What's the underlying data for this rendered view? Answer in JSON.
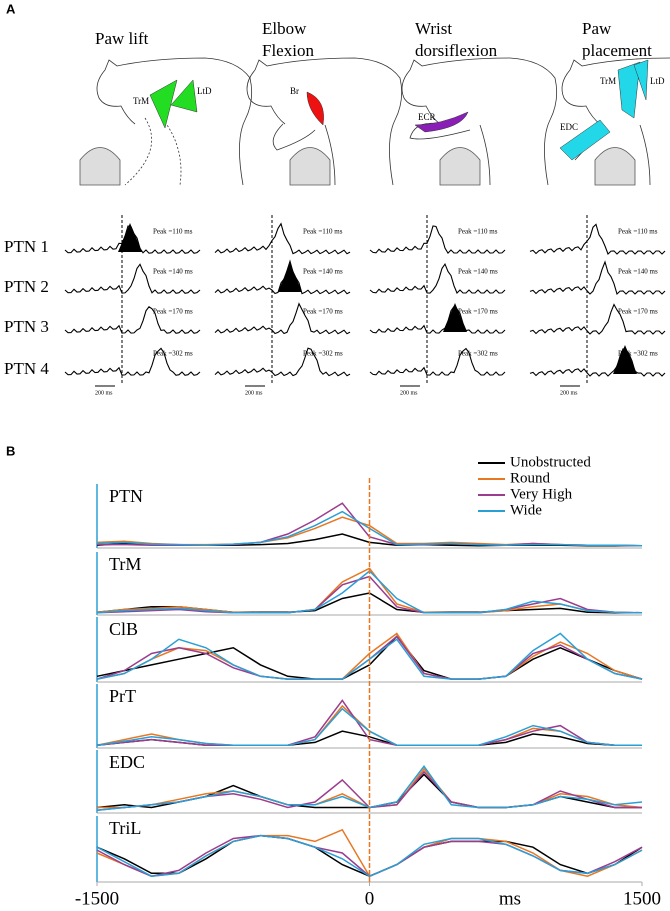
{
  "panel_a": {
    "label": "A",
    "columns": [
      {
        "title": [
          "Paw lift"
        ],
        "muscles": [
          "TrM",
          "LtD"
        ]
      },
      {
        "title": [
          "Elbow",
          "Flexion"
        ],
        "muscles": [
          "Br"
        ]
      },
      {
        "title": [
          "Wrist",
          "dorsiflexion"
        ],
        "muscles": [
          "ECR"
        ]
      },
      {
        "title": [
          "Paw",
          "placement"
        ],
        "muscles": [
          "TrM",
          "LtD",
          "EDC"
        ]
      }
    ],
    "rows": [
      "PTN 1",
      "PTN 2",
      "PTN 3",
      "PTN 4"
    ],
    "peaks": [
      "Peak =110 ms",
      "Peak =140 ms",
      "Peak =170 ms",
      "Peak =302 ms"
    ],
    "scale_bar": "200 ms"
  },
  "panel_b": {
    "label": "B"
  },
  "chart_data": [
    {
      "type": "line",
      "title": "PTN",
      "xlim": [
        -1500,
        1500
      ],
      "ylim": [
        0,
        1
      ],
      "x": [
        -1500,
        -1350,
        -1200,
        -1050,
        -900,
        -750,
        -600,
        -450,
        -300,
        -150,
        0,
        150,
        300,
        450,
        600,
        750,
        900,
        1050,
        1200,
        1350,
        1500
      ],
      "series": [
        {
          "name": "Unobstructed",
          "color": "#000000",
          "values": [
            0.05,
            0.08,
            0.06,
            0.05,
            0.05,
            0.05,
            0.06,
            0.08,
            0.15,
            0.25,
            0.1,
            0.05,
            0.06,
            0.05,
            0.04,
            0.05,
            0.05,
            0.05,
            0.04,
            0.04,
            0.04
          ]
        },
        {
          "name": "Round",
          "color": "#e87722",
          "values": [
            0.1,
            0.12,
            0.08,
            0.06,
            0.06,
            0.07,
            0.1,
            0.18,
            0.35,
            0.55,
            0.4,
            0.08,
            0.08,
            0.1,
            0.08,
            0.06,
            0.08,
            0.06,
            0.05,
            0.05,
            0.04
          ]
        },
        {
          "name": "Very High",
          "color": "#9b3d8f",
          "values": [
            0.06,
            0.06,
            0.05,
            0.05,
            0.05,
            0.06,
            0.1,
            0.25,
            0.5,
            0.8,
            0.2,
            0.06,
            0.06,
            0.08,
            0.06,
            0.05,
            0.08,
            0.06,
            0.05,
            0.05,
            0.04
          ]
        },
        {
          "name": "Wide",
          "color": "#2a9fd6",
          "values": [
            0.08,
            0.1,
            0.07,
            0.06,
            0.05,
            0.07,
            0.1,
            0.2,
            0.4,
            0.65,
            0.35,
            0.06,
            0.07,
            0.08,
            0.06,
            0.05,
            0.06,
            0.06,
            0.05,
            0.05,
            0.04
          ]
        }
      ]
    },
    {
      "type": "line",
      "title": "TrM",
      "xlim": [
        -1500,
        1500
      ],
      "ylim": [
        0,
        1
      ],
      "x": [
        -1500,
        -1350,
        -1200,
        -1050,
        -900,
        -750,
        -600,
        -450,
        -300,
        -150,
        0,
        150,
        300,
        450,
        600,
        750,
        900,
        1050,
        1200,
        1350,
        1500
      ],
      "series": [
        {
          "name": "Unobstructed",
          "color": "#000000",
          "values": [
            0.05,
            0.1,
            0.15,
            0.15,
            0.1,
            0.05,
            0.05,
            0.05,
            0.08,
            0.3,
            0.4,
            0.1,
            0.05,
            0.05,
            0.05,
            0.08,
            0.1,
            0.12,
            0.05,
            0.04,
            0.04
          ]
        },
        {
          "name": "Round",
          "color": "#e87722",
          "values": [
            0.05,
            0.1,
            0.12,
            0.15,
            0.1,
            0.05,
            0.04,
            0.04,
            0.1,
            0.6,
            0.85,
            0.2,
            0.05,
            0.04,
            0.04,
            0.08,
            0.15,
            0.2,
            0.08,
            0.05,
            0.04
          ]
        },
        {
          "name": "Very High",
          "color": "#9b3d8f",
          "values": [
            0.04,
            0.06,
            0.08,
            0.1,
            0.06,
            0.04,
            0.04,
            0.04,
            0.1,
            0.55,
            0.7,
            0.15,
            0.04,
            0.04,
            0.04,
            0.1,
            0.2,
            0.3,
            0.1,
            0.05,
            0.04
          ]
        },
        {
          "name": "Wide",
          "color": "#2a9fd6",
          "values": [
            0.04,
            0.08,
            0.1,
            0.12,
            0.08,
            0.04,
            0.04,
            0.04,
            0.1,
            0.4,
            0.8,
            0.3,
            0.04,
            0.04,
            0.04,
            0.1,
            0.25,
            0.2,
            0.08,
            0.05,
            0.04
          ]
        }
      ]
    },
    {
      "type": "line",
      "title": "ClB",
      "xlim": [
        -1500,
        1500
      ],
      "ylim": [
        0,
        1
      ],
      "x": [
        -1500,
        -1350,
        -1200,
        -1050,
        -900,
        -750,
        -600,
        -450,
        -300,
        -150,
        0,
        150,
        300,
        450,
        600,
        750,
        900,
        1050,
        1200,
        1350,
        1500
      ],
      "series": [
        {
          "name": "Unobstructed",
          "color": "#000000",
          "values": [
            0.1,
            0.2,
            0.3,
            0.4,
            0.5,
            0.6,
            0.3,
            0.1,
            0.05,
            0.05,
            0.3,
            0.8,
            0.2,
            0.05,
            0.05,
            0.1,
            0.4,
            0.6,
            0.4,
            0.2,
            0.05
          ]
        },
        {
          "name": "Round",
          "color": "#e87722",
          "values": [
            0.05,
            0.15,
            0.4,
            0.6,
            0.55,
            0.3,
            0.1,
            0.05,
            0.05,
            0.05,
            0.5,
            0.85,
            0.15,
            0.05,
            0.05,
            0.1,
            0.45,
            0.7,
            0.5,
            0.2,
            0.05
          ]
        },
        {
          "name": "Very High",
          "color": "#9b3d8f",
          "values": [
            0.05,
            0.2,
            0.5,
            0.6,
            0.5,
            0.25,
            0.1,
            0.05,
            0.05,
            0.05,
            0.4,
            0.8,
            0.15,
            0.05,
            0.05,
            0.1,
            0.5,
            0.65,
            0.4,
            0.15,
            0.05
          ]
        },
        {
          "name": "Wide",
          "color": "#2a9fd6",
          "values": [
            0.05,
            0.15,
            0.4,
            0.75,
            0.6,
            0.3,
            0.1,
            0.05,
            0.05,
            0.05,
            0.4,
            0.75,
            0.1,
            0.05,
            0.05,
            0.1,
            0.55,
            0.85,
            0.4,
            0.15,
            0.05
          ]
        }
      ]
    },
    {
      "type": "line",
      "title": "PrT",
      "xlim": [
        -1500,
        1500
      ],
      "ylim": [
        0,
        1
      ],
      "x": [
        -1500,
        -1350,
        -1200,
        -1050,
        -900,
        -750,
        -600,
        -450,
        -300,
        -150,
        0,
        150,
        300,
        450,
        600,
        750,
        900,
        1050,
        1200,
        1350,
        1500
      ],
      "series": [
        {
          "name": "Unobstructed",
          "color": "#000000",
          "values": [
            0.05,
            0.1,
            0.15,
            0.1,
            0.05,
            0.05,
            0.05,
            0.05,
            0.1,
            0.3,
            0.2,
            0.05,
            0.05,
            0.05,
            0.05,
            0.1,
            0.25,
            0.2,
            0.08,
            0.05,
            0.05
          ]
        },
        {
          "name": "Round",
          "color": "#e87722",
          "values": [
            0.05,
            0.15,
            0.25,
            0.15,
            0.08,
            0.05,
            0.05,
            0.05,
            0.15,
            0.75,
            0.3,
            0.05,
            0.05,
            0.05,
            0.05,
            0.15,
            0.35,
            0.3,
            0.1,
            0.05,
            0.05
          ]
        },
        {
          "name": "Very High",
          "color": "#9b3d8f",
          "values": [
            0.05,
            0.1,
            0.15,
            0.1,
            0.05,
            0.05,
            0.05,
            0.05,
            0.2,
            0.85,
            0.15,
            0.05,
            0.05,
            0.05,
            0.05,
            0.15,
            0.3,
            0.4,
            0.1,
            0.05,
            0.05
          ]
        },
        {
          "name": "Wide",
          "color": "#2a9fd6",
          "values": [
            0.05,
            0.12,
            0.2,
            0.15,
            0.08,
            0.05,
            0.05,
            0.05,
            0.15,
            0.7,
            0.3,
            0.05,
            0.05,
            0.05,
            0.05,
            0.2,
            0.4,
            0.3,
            0.1,
            0.05,
            0.05
          ]
        }
      ]
    },
    {
      "type": "line",
      "title": "EDC",
      "xlim": [
        -1500,
        1500
      ],
      "ylim": [
        0,
        1
      ],
      "x": [
        -1500,
        -1350,
        -1200,
        -1050,
        -900,
        -750,
        -600,
        -450,
        -300,
        -150,
        0,
        150,
        300,
        450,
        600,
        750,
        900,
        1050,
        1200,
        1350,
        1500
      ],
      "series": [
        {
          "name": "Unobstructed",
          "color": "#000000",
          "values": [
            0.1,
            0.15,
            0.1,
            0.2,
            0.3,
            0.5,
            0.3,
            0.15,
            0.1,
            0.1,
            0.1,
            0.2,
            0.7,
            0.2,
            0.1,
            0.1,
            0.15,
            0.3,
            0.2,
            0.1,
            0.1
          ]
        },
        {
          "name": "Round",
          "color": "#e87722",
          "values": [
            0.1,
            0.1,
            0.15,
            0.25,
            0.35,
            0.4,
            0.3,
            0.15,
            0.15,
            0.35,
            0.1,
            0.15,
            0.8,
            0.2,
            0.1,
            0.1,
            0.15,
            0.35,
            0.3,
            0.15,
            0.1
          ]
        },
        {
          "name": "Very High",
          "color": "#9b3d8f",
          "values": [
            0.05,
            0.1,
            0.15,
            0.2,
            0.3,
            0.35,
            0.25,
            0.1,
            0.2,
            0.6,
            0.1,
            0.15,
            0.75,
            0.2,
            0.1,
            0.1,
            0.15,
            0.4,
            0.25,
            0.1,
            0.1
          ]
        },
        {
          "name": "Wide",
          "color": "#2a9fd6",
          "values": [
            0.05,
            0.1,
            0.15,
            0.2,
            0.3,
            0.4,
            0.3,
            0.15,
            0.15,
            0.3,
            0.1,
            0.2,
            0.85,
            0.15,
            0.1,
            0.1,
            0.15,
            0.3,
            0.25,
            0.15,
            0.2
          ]
        }
      ]
    },
    {
      "type": "line",
      "title": "TriL",
      "xlim": [
        -1500,
        1500
      ],
      "ylim": [
        0,
        1
      ],
      "x": [
        -1500,
        -1350,
        -1200,
        -1050,
        -900,
        -750,
        -600,
        -450,
        -300,
        -150,
        0,
        150,
        300,
        450,
        600,
        750,
        900,
        1050,
        1200,
        1350,
        1500
      ],
      "xticks": [
        -1500,
        0,
        1500
      ],
      "xlabel": "ms",
      "series": [
        {
          "name": "Unobstructed",
          "color": "#000000",
          "values": [
            0.6,
            0.4,
            0.15,
            0.15,
            0.4,
            0.7,
            0.8,
            0.75,
            0.6,
            0.3,
            0.1,
            0.3,
            0.6,
            0.7,
            0.7,
            0.7,
            0.6,
            0.3,
            0.15,
            0.3,
            0.6
          ]
        },
        {
          "name": "Round",
          "color": "#e87722",
          "values": [
            0.5,
            0.3,
            0.1,
            0.15,
            0.45,
            0.7,
            0.8,
            0.8,
            0.7,
            0.9,
            0.1,
            0.3,
            0.6,
            0.75,
            0.75,
            0.7,
            0.5,
            0.2,
            0.1,
            0.3,
            0.55
          ]
        },
        {
          "name": "Very High",
          "color": "#9b3d8f",
          "values": [
            0.55,
            0.3,
            0.1,
            0.2,
            0.5,
            0.75,
            0.8,
            0.75,
            0.6,
            0.5,
            0.1,
            0.3,
            0.6,
            0.7,
            0.7,
            0.65,
            0.45,
            0.2,
            0.15,
            0.35,
            0.6
          ]
        },
        {
          "name": "Wide",
          "color": "#2a9fd6",
          "values": [
            0.6,
            0.35,
            0.1,
            0.15,
            0.45,
            0.7,
            0.8,
            0.75,
            0.6,
            0.4,
            0.1,
            0.3,
            0.65,
            0.75,
            0.75,
            0.65,
            0.45,
            0.2,
            0.15,
            0.3,
            0.55
          ]
        }
      ]
    }
  ]
}
